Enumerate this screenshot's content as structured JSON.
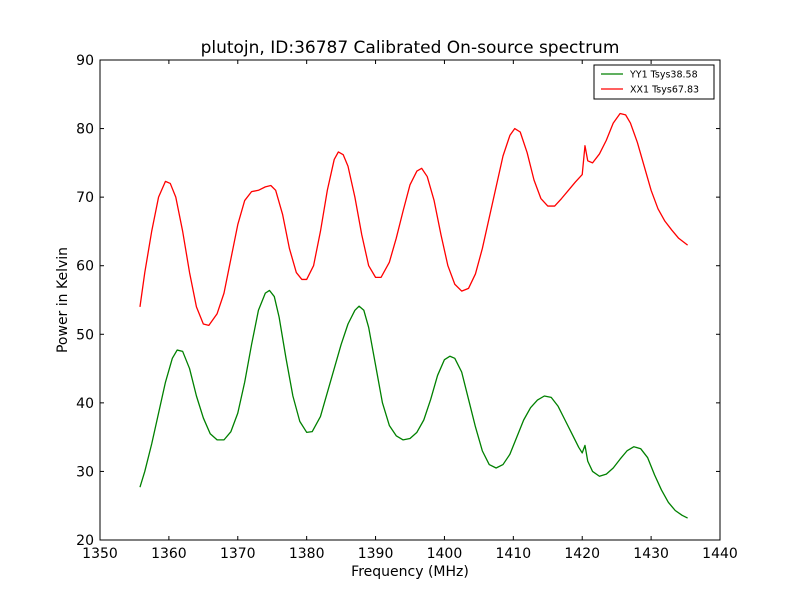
{
  "chart_data": {
    "type": "line",
    "title": "plutojn, ID:36787 Calibrated On-source spectrum",
    "xlabel": "Frequency (MHz)",
    "ylabel": "Power in Kelvin",
    "xlim": [
      1350,
      1440
    ],
    "ylim": [
      20,
      90
    ],
    "xticks": [
      1350,
      1360,
      1370,
      1380,
      1390,
      1400,
      1410,
      1420,
      1430,
      1440
    ],
    "yticks": [
      20,
      30,
      40,
      50,
      60,
      70,
      80,
      90
    ],
    "grid": false,
    "legend_position": "top-right",
    "series": [
      {
        "name": "YY1 Tsys38.58",
        "color": "#008000",
        "points": [
          [
            1355.8,
            27.7
          ],
          [
            1356.5,
            30.0
          ],
          [
            1357.5,
            34.0
          ],
          [
            1358.5,
            38.5
          ],
          [
            1359.5,
            43.0
          ],
          [
            1360.5,
            46.5
          ],
          [
            1361.2,
            47.7
          ],
          [
            1362.0,
            47.5
          ],
          [
            1363.0,
            45.0
          ],
          [
            1364.0,
            41.0
          ],
          [
            1365.0,
            37.8
          ],
          [
            1366.0,
            35.5
          ],
          [
            1367.0,
            34.6
          ],
          [
            1368.0,
            34.6
          ],
          [
            1369.0,
            35.8
          ],
          [
            1370.0,
            38.5
          ],
          [
            1371.0,
            43.0
          ],
          [
            1372.0,
            48.5
          ],
          [
            1373.0,
            53.5
          ],
          [
            1374.0,
            56.0
          ],
          [
            1374.6,
            56.4
          ],
          [
            1375.3,
            55.5
          ],
          [
            1376.0,
            52.5
          ],
          [
            1377.0,
            46.5
          ],
          [
            1378.0,
            41.0
          ],
          [
            1379.0,
            37.3
          ],
          [
            1380.0,
            35.7
          ],
          [
            1380.8,
            35.8
          ],
          [
            1382.0,
            38.0
          ],
          [
            1383.0,
            41.5
          ],
          [
            1384.0,
            45.0
          ],
          [
            1385.0,
            48.5
          ],
          [
            1386.0,
            51.5
          ],
          [
            1387.0,
            53.5
          ],
          [
            1387.6,
            54.1
          ],
          [
            1388.3,
            53.5
          ],
          [
            1389.0,
            51.0
          ],
          [
            1390.0,
            45.5
          ],
          [
            1391.0,
            40.0
          ],
          [
            1392.0,
            36.7
          ],
          [
            1393.0,
            35.2
          ],
          [
            1394.0,
            34.6
          ],
          [
            1395.0,
            34.8
          ],
          [
            1396.0,
            35.7
          ],
          [
            1397.0,
            37.5
          ],
          [
            1398.0,
            40.5
          ],
          [
            1399.0,
            44.0
          ],
          [
            1400.0,
            46.3
          ],
          [
            1400.8,
            46.8
          ],
          [
            1401.5,
            46.5
          ],
          [
            1402.5,
            44.5
          ],
          [
            1403.5,
            40.5
          ],
          [
            1404.5,
            36.5
          ],
          [
            1405.5,
            33.0
          ],
          [
            1406.5,
            31.0
          ],
          [
            1407.5,
            30.5
          ],
          [
            1408.5,
            31.0
          ],
          [
            1409.5,
            32.5
          ],
          [
            1410.5,
            35.0
          ],
          [
            1411.5,
            37.5
          ],
          [
            1412.5,
            39.3
          ],
          [
            1413.5,
            40.4
          ],
          [
            1414.5,
            41.0
          ],
          [
            1415.5,
            40.8
          ],
          [
            1416.5,
            39.5
          ],
          [
            1417.5,
            37.5
          ],
          [
            1418.5,
            35.5
          ],
          [
            1419.5,
            33.5
          ],
          [
            1420.0,
            32.7
          ],
          [
            1420.4,
            33.8
          ],
          [
            1420.8,
            31.5
          ],
          [
            1421.5,
            30.0
          ],
          [
            1422.5,
            29.3
          ],
          [
            1423.5,
            29.6
          ],
          [
            1424.5,
            30.5
          ],
          [
            1425.5,
            31.8
          ],
          [
            1426.5,
            33.0
          ],
          [
            1427.5,
            33.6
          ],
          [
            1428.5,
            33.3
          ],
          [
            1429.5,
            32.0
          ],
          [
            1430.5,
            29.5
          ],
          [
            1431.5,
            27.3
          ],
          [
            1432.5,
            25.5
          ],
          [
            1433.5,
            24.3
          ],
          [
            1434.5,
            23.6
          ],
          [
            1435.3,
            23.2
          ]
        ]
      },
      {
        "name": "XX1 Tsys67.83",
        "color": "#ff0000",
        "points": [
          [
            1355.8,
            54.0
          ],
          [
            1356.5,
            59.0
          ],
          [
            1357.5,
            65.0
          ],
          [
            1358.5,
            70.0
          ],
          [
            1359.5,
            72.3
          ],
          [
            1360.2,
            72.0
          ],
          [
            1361.0,
            70.0
          ],
          [
            1362.0,
            65.0
          ],
          [
            1363.0,
            59.0
          ],
          [
            1364.0,
            54.0
          ],
          [
            1365.0,
            51.5
          ],
          [
            1365.8,
            51.3
          ],
          [
            1367.0,
            53.0
          ],
          [
            1368.0,
            56.0
          ],
          [
            1369.0,
            61.0
          ],
          [
            1370.0,
            66.0
          ],
          [
            1371.0,
            69.5
          ],
          [
            1372.0,
            70.8
          ],
          [
            1373.0,
            71.0
          ],
          [
            1374.0,
            71.5
          ],
          [
            1374.8,
            71.7
          ],
          [
            1375.5,
            71.0
          ],
          [
            1376.5,
            67.5
          ],
          [
            1377.5,
            62.5
          ],
          [
            1378.5,
            59.0
          ],
          [
            1379.3,
            58.0
          ],
          [
            1380.0,
            58.0
          ],
          [
            1381.0,
            60.0
          ],
          [
            1382.0,
            65.0
          ],
          [
            1383.0,
            71.0
          ],
          [
            1384.0,
            75.5
          ],
          [
            1384.6,
            76.6
          ],
          [
            1385.3,
            76.2
          ],
          [
            1386.0,
            74.5
          ],
          [
            1387.0,
            70.0
          ],
          [
            1388.0,
            64.5
          ],
          [
            1389.0,
            60.0
          ],
          [
            1390.0,
            58.3
          ],
          [
            1390.8,
            58.3
          ],
          [
            1392.0,
            60.5
          ],
          [
            1393.0,
            64.0
          ],
          [
            1394.0,
            68.0
          ],
          [
            1395.0,
            71.8
          ],
          [
            1396.0,
            73.8
          ],
          [
            1396.7,
            74.2
          ],
          [
            1397.5,
            73.0
          ],
          [
            1398.5,
            69.5
          ],
          [
            1399.5,
            64.5
          ],
          [
            1400.5,
            60.0
          ],
          [
            1401.5,
            57.3
          ],
          [
            1402.5,
            56.3
          ],
          [
            1403.5,
            56.7
          ],
          [
            1404.5,
            58.8
          ],
          [
            1405.5,
            62.5
          ],
          [
            1406.5,
            67.0
          ],
          [
            1407.5,
            71.5
          ],
          [
            1408.5,
            76.0
          ],
          [
            1409.5,
            79.0
          ],
          [
            1410.2,
            80.0
          ],
          [
            1411.0,
            79.5
          ],
          [
            1412.0,
            76.5
          ],
          [
            1413.0,
            72.5
          ],
          [
            1414.0,
            69.8
          ],
          [
            1415.0,
            68.7
          ],
          [
            1416.0,
            68.7
          ],
          [
            1417.0,
            69.8
          ],
          [
            1418.0,
            71.0
          ],
          [
            1419.0,
            72.2
          ],
          [
            1420.0,
            73.3
          ],
          [
            1420.4,
            77.5
          ],
          [
            1420.8,
            75.3
          ],
          [
            1421.5,
            75.0
          ],
          [
            1422.5,
            76.3
          ],
          [
            1423.5,
            78.3
          ],
          [
            1424.5,
            80.8
          ],
          [
            1425.5,
            82.2
          ],
          [
            1426.3,
            82.0
          ],
          [
            1427.0,
            80.8
          ],
          [
            1428.0,
            78.0
          ],
          [
            1429.0,
            74.5
          ],
          [
            1430.0,
            71.0
          ],
          [
            1431.0,
            68.3
          ],
          [
            1432.0,
            66.5
          ],
          [
            1433.0,
            65.2
          ],
          [
            1434.0,
            64.0
          ],
          [
            1435.3,
            63.0
          ]
        ]
      }
    ]
  }
}
